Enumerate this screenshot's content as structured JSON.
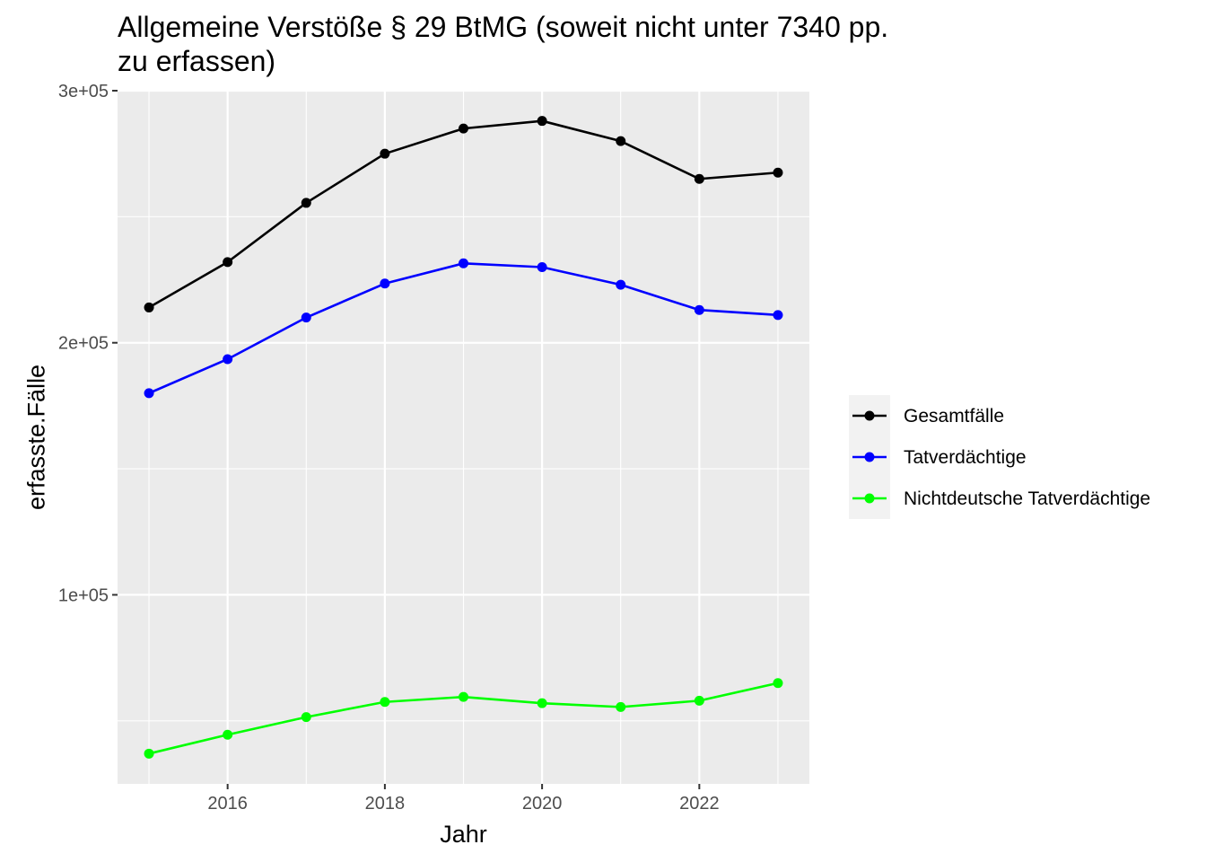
{
  "chart_data": {
    "type": "line",
    "title_line1": "Allgemeine Verstöße § 29 BtMG (soweit nicht unter 7340 pp.",
    "title_line2": "zu erfassen)",
    "xlabel": "Jahr",
    "ylabel": "erfasste.Fälle",
    "x": [
      2015,
      2016,
      2017,
      2018,
      2019,
      2020,
      2021,
      2022,
      2023
    ],
    "xlim": [
      2014.6,
      2023.4
    ],
    "ylim": [
      25000,
      300000
    ],
    "x_ticks": [
      2016,
      2018,
      2020,
      2022
    ],
    "x_tick_labels": [
      "2016",
      "2018",
      "2020",
      "2022"
    ],
    "y_ticks": [
      100000,
      200000,
      300000
    ],
    "y_tick_labels": [
      "1e+05",
      "2e+05",
      "3e+05"
    ],
    "grid": true,
    "panel_background": "#ebebeb",
    "legend_position": "right",
    "series": [
      {
        "name": "Gesamtfälle",
        "color": "#000000",
        "values": [
          214000,
          232000,
          255500,
          275000,
          285000,
          288000,
          280000,
          265000,
          267500
        ]
      },
      {
        "name": "Tatverdächtige",
        "color": "#0000ff",
        "values": [
          180000,
          193500,
          210000,
          223500,
          231500,
          230000,
          223000,
          213000,
          211000
        ]
      },
      {
        "name": "Nichtdeutsche Tatverdächtige",
        "color": "#00ff00",
        "values": [
          37000,
          44500,
          51500,
          57500,
          59500,
          57000,
          55500,
          58000,
          65000
        ]
      }
    ]
  }
}
